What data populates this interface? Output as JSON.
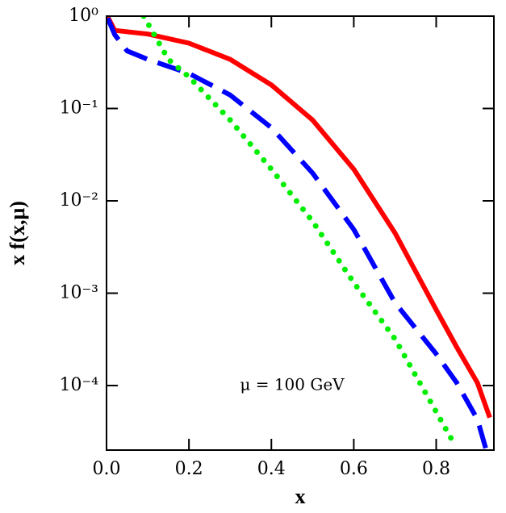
{
  "chart_data": {
    "type": "line",
    "xlabel": "x",
    "ylabel": "x f(x,μ)",
    "annotation": "μ = 100 GeV",
    "xlim": [
      0,
      0.94
    ],
    "ylim": [
      2e-05,
      1
    ],
    "ylog": true,
    "xticks": [
      {
        "value": 0,
        "label": "0.0"
      },
      0.2,
      0.4,
      0.6,
      0.8
    ],
    "yticks": [
      {
        "value": 1,
        "label": "10⁰"
      },
      {
        "value": 0.1,
        "label": "10⁻¹"
      },
      {
        "value": 0.01,
        "label": "10⁻²"
      },
      {
        "value": 0.001,
        "label": "10⁻³"
      },
      {
        "value": 0.0001,
        "label": "10⁻⁴"
      }
    ],
    "series": [
      {
        "color": "#ff0000",
        "dash": "solid",
        "x": [
          0.003,
          0.02,
          0.1,
          0.2,
          0.3,
          0.4,
          0.5,
          0.6,
          0.7,
          0.8,
          0.85,
          0.9,
          0.93
        ],
        "values": [
          0.98,
          0.7,
          0.64,
          0.51,
          0.34,
          0.18,
          0.075,
          0.022,
          0.0045,
          0.00066,
          0.00026,
          0.000107,
          4.5e-05
        ]
      },
      {
        "color": "#0000ff",
        "dash": "dashed",
        "x": [
          0.003,
          0.02,
          0.05,
          0.1,
          0.2,
          0.3,
          0.4,
          0.5,
          0.6,
          0.7,
          0.8,
          0.85,
          0.9,
          0.92
        ],
        "values": [
          0.95,
          0.63,
          0.42,
          0.34,
          0.24,
          0.14,
          0.062,
          0.02,
          0.0049,
          0.00079,
          0.00022,
          0.000107,
          4.3e-05,
          2.1e-05
        ]
      },
      {
        "color": "#00ee00",
        "dash": "dotted",
        "x": [
          0.09,
          0.15,
          0.2,
          0.3,
          0.4,
          0.5,
          0.6,
          0.7,
          0.8,
          0.84
        ],
        "values": [
          1.0,
          0.34,
          0.22,
          0.075,
          0.022,
          0.006,
          0.0013,
          0.00032,
          5.2e-05,
          2.5e-05
        ]
      }
    ]
  }
}
